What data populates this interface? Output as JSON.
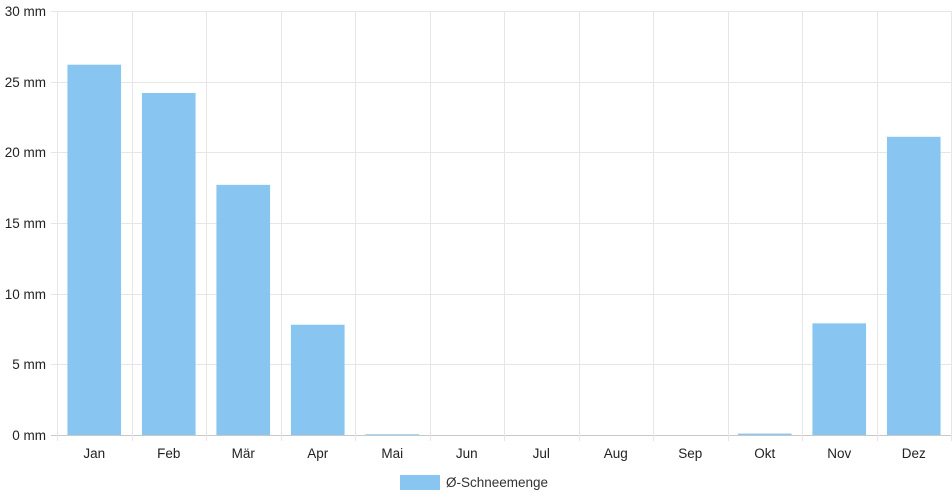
{
  "chart_data": {
    "type": "bar",
    "categories": [
      "Jan",
      "Feb",
      "Mär",
      "Apr",
      "Mai",
      "Jun",
      "Jul",
      "Aug",
      "Sep",
      "Okt",
      "Nov",
      "Dez"
    ],
    "series": [
      {
        "name": "Ø-Schneemenge",
        "values": [
          26.2,
          24.2,
          17.7,
          7.8,
          0.05,
          0,
          0,
          0,
          0,
          0.1,
          7.9,
          21.1
        ],
        "color": "#88c6f1"
      }
    ],
    "y_ticks": [
      "0 mm",
      "5 mm",
      "10 mm",
      "15 mm",
      "20 mm",
      "25 mm",
      "30 mm"
    ],
    "ylim": [
      0,
      30
    ],
    "y_unit": "mm",
    "grid": true,
    "legend_position": "bottom",
    "colors": {
      "grid": "#e6e6e6",
      "axis_text": "#222222"
    }
  }
}
